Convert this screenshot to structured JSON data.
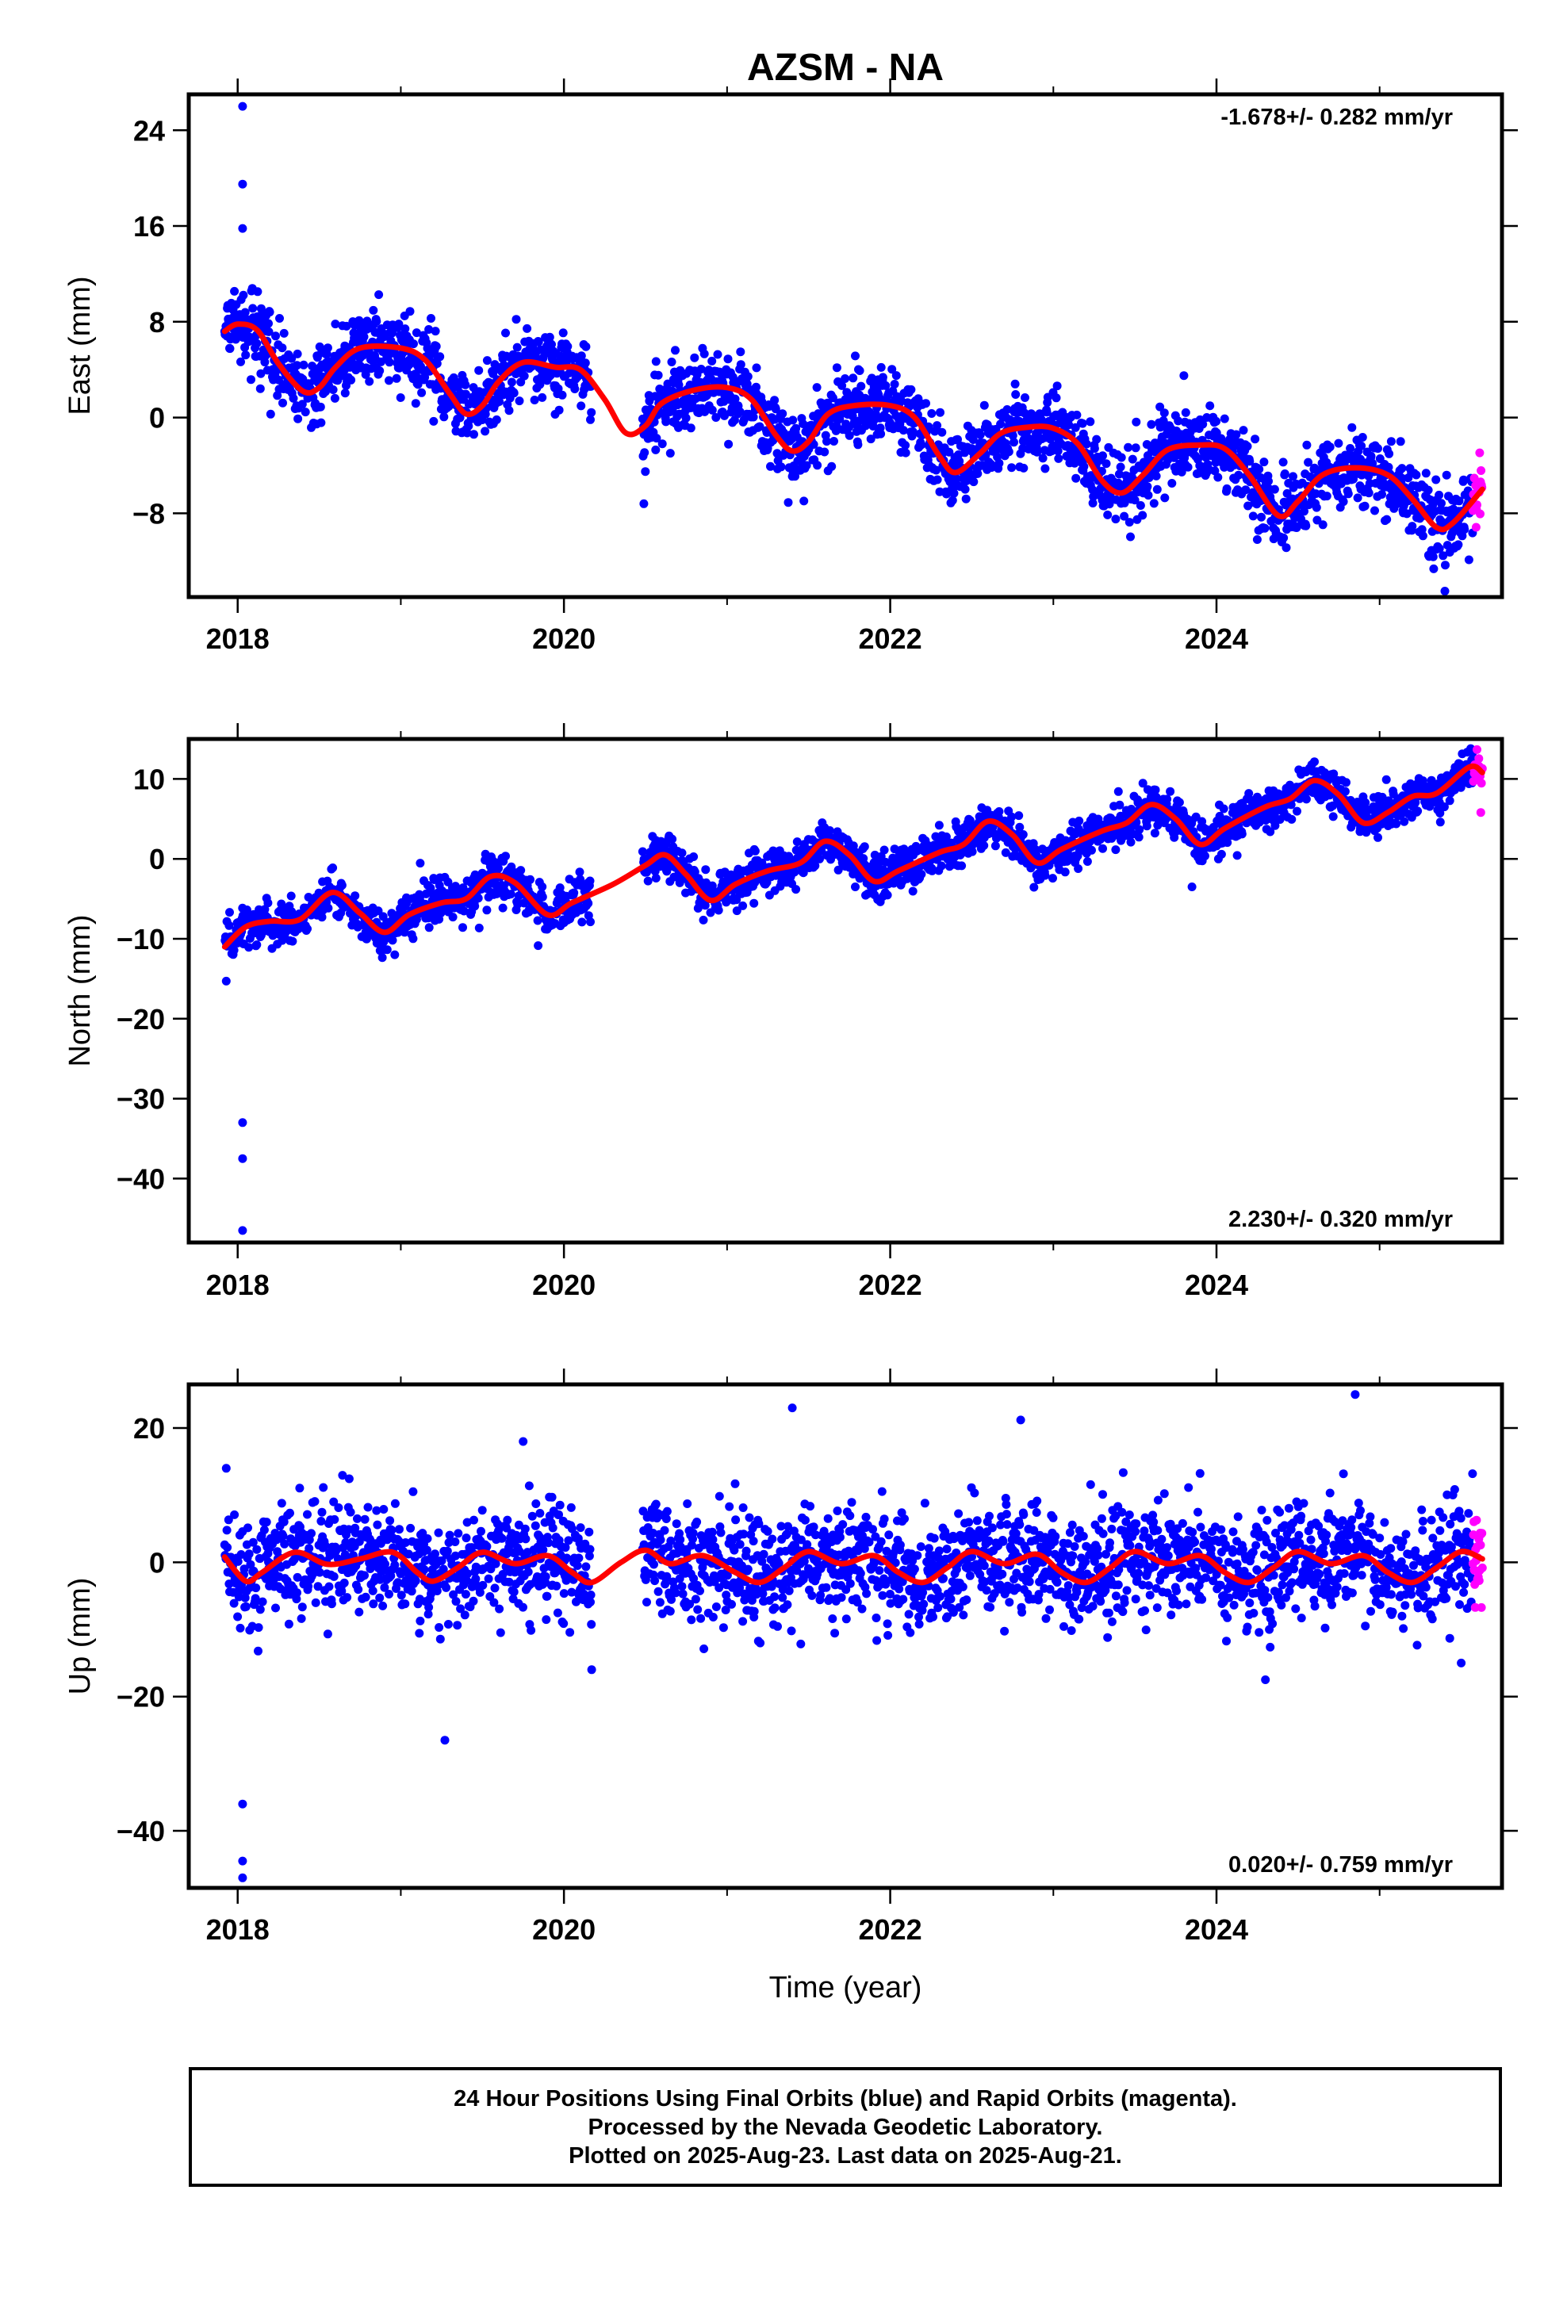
{
  "page_title": "AZSM - NA",
  "colors": {
    "final_orbits": "#0000ff",
    "rapid_orbits": "#ff00ff",
    "model": "#ff0000",
    "frame": "#000000"
  },
  "footer": {
    "line1": "24 Hour Positions Using Final Orbits (blue) and Rapid Orbits (magenta).",
    "line2": "Processed by the Nevada Geodetic Laboratory.",
    "line3": "Plotted on 2025-Aug-23. Last data on 2025-Aug-21."
  },
  "chart_data": [
    {
      "type": "scatter",
      "component": "east",
      "ylabel": "East (mm)",
      "xlabel": "",
      "rate_text": "-1.678+/- 0.282 mm/yr",
      "xlim": [
        2017.7,
        2025.75
      ],
      "ylim": [
        -15,
        27
      ],
      "xticks": [
        2018,
        2020,
        2022,
        2024
      ],
      "yticks": [
        -8,
        0,
        8,
        16,
        24
      ],
      "data_start": 2017.92,
      "data_end": 2025.63,
      "gap": [
        2020.17,
        2020.48
      ],
      "rapid_start": 2025.57,
      "trend": {
        "ref_year": 2021.5,
        "offset": 1.5,
        "rate": -1.678
      },
      "seasonal": {
        "annual_amp": 2.5,
        "annual_phase": 1.2,
        "semiannual_amp": 0.6,
        "semiannual_phase": 0.4
      },
      "jumps": [
        {
          "year": 2020.5,
          "value": -2.0
        },
        {
          "year": 2024.3,
          "value": -1.5
        }
      ],
      "scatter_sd": 1.5,
      "outliers": [
        [
          2018.03,
          26.0
        ],
        [
          2018.03,
          19.5
        ],
        [
          2018.03,
          15.8
        ],
        [
          2020.49,
          -7.2
        ],
        [
          2024.25,
          -10.2
        ],
        [
          2023.8,
          3.5
        ],
        [
          2025.4,
          -14.5
        ],
        [
          2025.3,
          -11.5
        ]
      ],
      "model_points": [
        [
          2017.92,
          7.2
        ],
        [
          2018.0,
          7.8
        ],
        [
          2018.12,
          7.3
        ],
        [
          2018.25,
          4.5
        ],
        [
          2018.4,
          2.2
        ],
        [
          2018.5,
          2.5
        ],
        [
          2018.6,
          4.2
        ],
        [
          2018.75,
          5.8
        ],
        [
          2019.0,
          5.8
        ],
        [
          2019.15,
          4.8
        ],
        [
          2019.3,
          2.0
        ],
        [
          2019.4,
          0.3
        ],
        [
          2019.5,
          1.0
        ],
        [
          2019.6,
          3.0
        ],
        [
          2019.75,
          4.6
        ],
        [
          2019.95,
          4.2
        ],
        [
          2020.1,
          4.0
        ],
        [
          2020.25,
          1.5
        ],
        [
          2020.38,
          -1.3
        ],
        [
          2020.5,
          -0.7
        ],
        [
          2020.6,
          1.2
        ],
        [
          2020.8,
          2.3
        ],
        [
          2021.0,
          2.5
        ],
        [
          2021.15,
          1.5
        ],
        [
          2021.3,
          -1.5
        ],
        [
          2021.4,
          -2.8
        ],
        [
          2021.5,
          -2.0
        ],
        [
          2021.62,
          0.3
        ],
        [
          2021.78,
          1.0
        ],
        [
          2022.0,
          1.0
        ],
        [
          2022.15,
          0.0
        ],
        [
          2022.3,
          -3.2
        ],
        [
          2022.4,
          -4.6
        ],
        [
          2022.55,
          -3.0
        ],
        [
          2022.68,
          -1.3
        ],
        [
          2022.85,
          -0.8
        ],
        [
          2023.0,
          -0.9
        ],
        [
          2023.15,
          -2.2
        ],
        [
          2023.3,
          -5.3
        ],
        [
          2023.42,
          -6.3
        ],
        [
          2023.55,
          -4.8
        ],
        [
          2023.7,
          -2.7
        ],
        [
          2023.9,
          -2.3
        ],
        [
          2024.05,
          -2.6
        ],
        [
          2024.2,
          -4.8
        ],
        [
          2024.38,
          -8.2
        ],
        [
          2024.5,
          -7.0
        ],
        [
          2024.65,
          -4.8
        ],
        [
          2024.85,
          -4.2
        ],
        [
          2025.05,
          -4.8
        ],
        [
          2025.2,
          -6.8
        ],
        [
          2025.35,
          -9.2
        ],
        [
          2025.45,
          -8.8
        ],
        [
          2025.63,
          -6.0
        ]
      ]
    },
    {
      "type": "scatter",
      "component": "north",
      "ylabel": "North (mm)",
      "xlabel": "",
      "rate_text": "2.230+/- 0.320 mm/yr",
      "xlim": [
        2017.7,
        2025.75
      ],
      "ylim": [
        -48,
        15
      ],
      "xticks": [
        2018,
        2020,
        2022,
        2024
      ],
      "yticks": [
        -40,
        -30,
        -20,
        -10,
        0,
        10
      ],
      "data_start": 2017.92,
      "data_end": 2025.63,
      "gap": [
        2020.17,
        2020.48
      ],
      "rapid_start": 2025.57,
      "trend": {
        "ref_year": 2021.5,
        "offset": -1.5,
        "rate": 2.23
      },
      "seasonal": {
        "annual_amp": 2.4,
        "annual_phase": 2.6,
        "semiannual_amp": 0.5,
        "semiannual_phase": 1.0
      },
      "jumps": [],
      "scatter_sd": 1.3,
      "outliers": [
        [
          2018.03,
          -33.0
        ],
        [
          2018.03,
          -37.5
        ],
        [
          2018.03,
          -46.5
        ],
        [
          2017.93,
          -15.3
        ],
        [
          2023.85,
          -3.5
        ],
        [
          2025.62,
          5.8
        ]
      ],
      "model_points": [
        [
          2017.92,
          -11.0
        ],
        [
          2018.05,
          -8.5
        ],
        [
          2018.2,
          -7.8
        ],
        [
          2018.38,
          -7.6
        ],
        [
          2018.58,
          -4.2
        ],
        [
          2018.75,
          -6.8
        ],
        [
          2018.9,
          -9.2
        ],
        [
          2019.05,
          -7.0
        ],
        [
          2019.25,
          -5.5
        ],
        [
          2019.4,
          -5.0
        ],
        [
          2019.55,
          -2.2
        ],
        [
          2019.7,
          -3.0
        ],
        [
          2019.9,
          -7.0
        ],
        [
          2020.05,
          -5.5
        ],
        [
          2020.3,
          -3.2
        ],
        [
          2020.5,
          -0.8
        ],
        [
          2020.62,
          0.5
        ],
        [
          2020.75,
          -2.0
        ],
        [
          2020.9,
          -5.2
        ],
        [
          2021.05,
          -3.2
        ],
        [
          2021.25,
          -1.5
        ],
        [
          2021.45,
          -0.5
        ],
        [
          2021.6,
          2.2
        ],
        [
          2021.75,
          0.5
        ],
        [
          2021.9,
          -2.8
        ],
        [
          2022.05,
          -1.5
        ],
        [
          2022.3,
          0.8
        ],
        [
          2022.45,
          1.8
        ],
        [
          2022.6,
          4.7
        ],
        [
          2022.75,
          3.0
        ],
        [
          2022.9,
          -0.5
        ],
        [
          2023.05,
          1.2
        ],
        [
          2023.3,
          3.5
        ],
        [
          2023.45,
          4.5
        ],
        [
          2023.6,
          6.8
        ],
        [
          2023.75,
          5.0
        ],
        [
          2023.9,
          1.8
        ],
        [
          2024.05,
          3.8
        ],
        [
          2024.3,
          6.5
        ],
        [
          2024.45,
          7.5
        ],
        [
          2024.6,
          9.8
        ],
        [
          2024.75,
          8.0
        ],
        [
          2024.9,
          4.5
        ],
        [
          2025.05,
          5.8
        ],
        [
          2025.2,
          7.8
        ],
        [
          2025.35,
          8.2
        ],
        [
          2025.55,
          11.5
        ],
        [
          2025.63,
          10.8
        ]
      ]
    },
    {
      "type": "scatter",
      "component": "up",
      "ylabel": "Up (mm)",
      "xlabel": "Time (year)",
      "rate_text": "0.020+/- 0.759 mm/yr",
      "xlim": [
        2017.7,
        2025.75
      ],
      "ylim": [
        -48.5,
        26.5
      ],
      "xticks": [
        2018,
        2020,
        2022,
        2024
      ],
      "yticks": [
        -40,
        -20,
        0,
        20
      ],
      "data_start": 2017.92,
      "data_end": 2025.63,
      "gap": [
        2020.17,
        2020.48
      ],
      "rapid_start": 2025.57,
      "trend": {
        "ref_year": 2021.5,
        "offset": 0.0,
        "rate": 0.02
      },
      "seasonal": {
        "annual_amp": 1.5,
        "annual_phase": 0.9,
        "semiannual_amp": 1.2,
        "semiannual_phase": 2.2
      },
      "jumps": [],
      "scatter_sd": 4.2,
      "outliers": [
        [
          2018.03,
          -36.0
        ],
        [
          2018.03,
          -44.5
        ],
        [
          2018.03,
          -47.0
        ],
        [
          2019.27,
          -26.5
        ],
        [
          2021.4,
          23.0
        ],
        [
          2024.85,
          25.0
        ],
        [
          2022.8,
          21.2
        ],
        [
          2024.3,
          -17.5
        ],
        [
          2025.5,
          -15.0
        ],
        [
          2020.17,
          -16.0
        ],
        [
          2017.93,
          14.0
        ],
        [
          2019.75,
          18.0
        ]
      ],
      "model_points": [
        [
          2017.92,
          0.8
        ],
        [
          2018.05,
          -2.8
        ],
        [
          2018.15,
          -1.5
        ],
        [
          2018.35,
          1.5
        ],
        [
          2018.55,
          -0.3
        ],
        [
          2018.75,
          0.5
        ],
        [
          2018.95,
          1.5
        ],
        [
          2019.1,
          -1.5
        ],
        [
          2019.2,
          -2.8
        ],
        [
          2019.35,
          -0.8
        ],
        [
          2019.5,
          1.5
        ],
        [
          2019.7,
          -0.2
        ],
        [
          2019.9,
          1.0
        ],
        [
          2020.05,
          -1.5
        ],
        [
          2020.17,
          -3.0
        ],
        [
          2020.35,
          0.0
        ],
        [
          2020.5,
          1.8
        ],
        [
          2020.65,
          -0.2
        ],
        [
          2020.85,
          1.0
        ],
        [
          2021.05,
          -1.5
        ],
        [
          2021.2,
          -3.0
        ],
        [
          2021.35,
          -0.8
        ],
        [
          2021.5,
          1.6
        ],
        [
          2021.7,
          -0.2
        ],
        [
          2021.9,
          1.0
        ],
        [
          2022.05,
          -1.5
        ],
        [
          2022.2,
          -3.0
        ],
        [
          2022.35,
          -0.8
        ],
        [
          2022.5,
          1.6
        ],
        [
          2022.7,
          -0.2
        ],
        [
          2022.9,
          1.2
        ],
        [
          2023.05,
          -1.5
        ],
        [
          2023.2,
          -3.0
        ],
        [
          2023.35,
          -0.8
        ],
        [
          2023.5,
          1.6
        ],
        [
          2023.7,
          -0.2
        ],
        [
          2023.9,
          1.0
        ],
        [
          2024.05,
          -1.5
        ],
        [
          2024.2,
          -3.0
        ],
        [
          2024.35,
          -0.8
        ],
        [
          2024.5,
          1.6
        ],
        [
          2024.7,
          -0.2
        ],
        [
          2024.9,
          1.0
        ],
        [
          2025.05,
          -1.5
        ],
        [
          2025.2,
          -3.0
        ],
        [
          2025.35,
          -0.8
        ],
        [
          2025.5,
          1.6
        ],
        [
          2025.63,
          0.5
        ]
      ]
    }
  ]
}
